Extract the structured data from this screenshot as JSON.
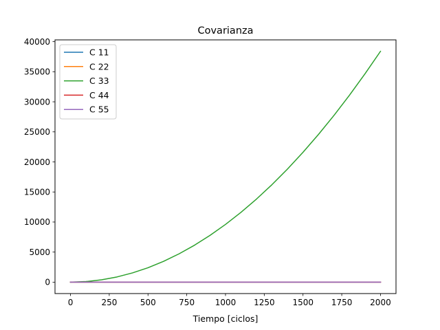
{
  "chart_data": {
    "type": "line",
    "title": "Covarianza",
    "xlabel": "Tiempo [ciclos]",
    "ylabel": "",
    "xlim": [
      -100,
      2100
    ],
    "ylim": [
      -1900,
      40300
    ],
    "xticks": [
      0,
      250,
      500,
      750,
      1000,
      1250,
      1500,
      1750,
      2000
    ],
    "yticks": [
      0,
      5000,
      10000,
      15000,
      20000,
      25000,
      30000,
      35000,
      40000
    ],
    "grid": false,
    "legend_position": "top-left",
    "series": [
      {
        "name": "C 11",
        "color": "#1f77b4",
        "x": [
          0,
          2000
        ],
        "y": [
          0,
          0
        ]
      },
      {
        "name": "C 22",
        "color": "#ff7f0e",
        "x": [
          0,
          2000
        ],
        "y": [
          0,
          0
        ]
      },
      {
        "name": "C 33",
        "color": "#2ca02c",
        "x": [
          0,
          100,
          200,
          300,
          400,
          500,
          600,
          700,
          800,
          900,
          1000,
          1100,
          1200,
          1300,
          1400,
          1500,
          1600,
          1700,
          1800,
          1900,
          2000
        ],
        "y": [
          0,
          96,
          384,
          864,
          1536,
          2400,
          3456,
          4704,
          6144,
          7776,
          9600,
          11616,
          13824,
          16224,
          18816,
          21600,
          24576,
          27744,
          31104,
          34656,
          38400
        ]
      },
      {
        "name": "C 44",
        "color": "#d62728",
        "x": [
          0,
          2000
        ],
        "y": [
          0,
          0
        ]
      },
      {
        "name": "C 55",
        "color": "#9467bd",
        "x": [
          0,
          2000
        ],
        "y": [
          0,
          0
        ]
      }
    ]
  }
}
